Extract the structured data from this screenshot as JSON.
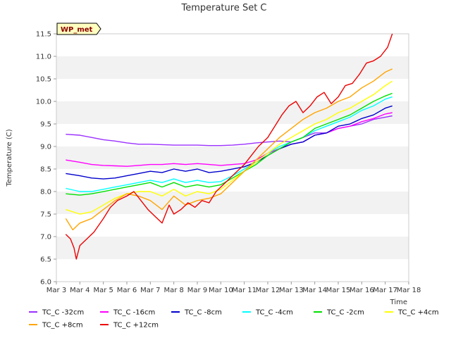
{
  "chart_data": {
    "type": "line",
    "title": "Temperature Set C",
    "xlabel": "Time",
    "ylabel": "Temperature (C)",
    "ylim": [
      6.0,
      11.5
    ],
    "xlim": [
      3,
      18
    ],
    "x_ticks": [
      {
        "value": 3,
        "label": "Mar 3"
      },
      {
        "value": 4,
        "label": "Mar 4"
      },
      {
        "value": 5,
        "label": "Mar 5"
      },
      {
        "value": 6,
        "label": "Mar 6"
      },
      {
        "value": 7,
        "label": "Mar 7"
      },
      {
        "value": 8,
        "label": "Mar 8"
      },
      {
        "value": 9,
        "label": "Mar 9"
      },
      {
        "value": 10,
        "label": "Mar 10"
      },
      {
        "value": 11,
        "label": "Mar 11"
      },
      {
        "value": 12,
        "label": "Mar 12"
      },
      {
        "value": 13,
        "label": "Mar 13"
      },
      {
        "value": 14,
        "label": "Mar 14"
      },
      {
        "value": 15,
        "label": "Mar 15"
      },
      {
        "value": 16,
        "label": "Mar 16"
      },
      {
        "value": 17,
        "label": "Mar 17"
      },
      {
        "value": 18,
        "label": "Mar 18"
      }
    ],
    "y_ticks": [
      "6.0",
      "6.5",
      "7.0",
      "7.5",
      "8.0",
      "8.5",
      "9.0",
      "9.5",
      "10.0",
      "10.5",
      "11.0",
      "11.5"
    ],
    "grid": "horizontal alternating bands",
    "legend_placement": "bottom",
    "annotation": "WP_met",
    "series": [
      {
        "name": "TC_C -32cm",
        "color": "#9b30ff",
        "x": [
          3.4,
          4,
          4.5,
          5,
          5.5,
          6,
          6.5,
          7,
          7.5,
          8,
          8.5,
          9,
          9.5,
          10,
          10.5,
          11,
          11.5,
          12,
          12.5,
          13,
          13.5,
          14,
          14.5,
          15,
          15.5,
          16,
          16.5,
          17,
          17.3
        ],
        "values": [
          9.27,
          9.25,
          9.2,
          9.15,
          9.12,
          9.08,
          9.05,
          9.05,
          9.04,
          9.03,
          9.03,
          9.03,
          9.02,
          9.02,
          9.03,
          9.05,
          9.08,
          9.1,
          9.12,
          9.1,
          9.2,
          9.3,
          9.3,
          9.4,
          9.45,
          9.5,
          9.6,
          9.65,
          9.68
        ]
      },
      {
        "name": "TC_C -16cm",
        "color": "#ff00ff",
        "x": [
          3.4,
          4,
          4.5,
          5,
          5.5,
          6,
          6.5,
          7,
          7.5,
          8,
          8.5,
          9,
          9.5,
          10,
          10.5,
          11,
          11.5,
          12,
          12.5,
          13,
          13.5,
          14,
          14.5,
          15,
          15.5,
          16,
          16.5,
          17,
          17.3
        ],
        "values": [
          8.7,
          8.65,
          8.6,
          8.58,
          8.57,
          8.56,
          8.58,
          8.6,
          8.6,
          8.62,
          8.6,
          8.62,
          8.6,
          8.58,
          8.6,
          8.62,
          8.7,
          8.85,
          8.95,
          9.05,
          9.1,
          9.25,
          9.3,
          9.4,
          9.45,
          9.55,
          9.62,
          9.72,
          9.75
        ]
      },
      {
        "name": "TC_C -8cm",
        "color": "#0000cd",
        "x": [
          3.4,
          4,
          4.5,
          5,
          5.5,
          6,
          6.5,
          7,
          7.5,
          8,
          8.5,
          9,
          9.5,
          10,
          10.5,
          11,
          11.5,
          12,
          12.5,
          13,
          13.5,
          14,
          14.5,
          15,
          15.5,
          16,
          16.5,
          17,
          17.3
        ],
        "values": [
          8.4,
          8.35,
          8.3,
          8.28,
          8.3,
          8.35,
          8.4,
          8.45,
          8.42,
          8.5,
          8.45,
          8.5,
          8.42,
          8.45,
          8.5,
          8.55,
          8.65,
          8.8,
          8.95,
          9.05,
          9.1,
          9.25,
          9.3,
          9.45,
          9.5,
          9.62,
          9.7,
          9.85,
          9.9
        ]
      },
      {
        "name": "TC_C -4cm",
        "color": "#00ffff",
        "x": [
          3.4,
          4,
          4.5,
          5,
          5.5,
          6,
          6.5,
          7,
          7.5,
          8,
          8.5,
          9,
          9.5,
          10,
          10.5,
          11,
          11.5,
          12,
          12.5,
          13,
          13.5,
          14,
          14.5,
          15,
          15.5,
          16,
          16.5,
          17,
          17.3
        ],
        "values": [
          8.07,
          8.0,
          8.0,
          8.05,
          8.1,
          8.15,
          8.2,
          8.25,
          8.2,
          8.28,
          8.2,
          8.25,
          8.2,
          8.22,
          8.35,
          8.5,
          8.65,
          8.85,
          9.0,
          9.1,
          9.2,
          9.35,
          9.45,
          9.55,
          9.65,
          9.8,
          9.9,
          10.05,
          10.1
        ]
      },
      {
        "name": "TC_C -2cm",
        "color": "#00e000",
        "x": [
          3.4,
          4,
          4.5,
          5,
          5.5,
          6,
          6.5,
          7,
          7.5,
          8,
          8.5,
          9,
          9.5,
          10,
          10.5,
          11,
          11.5,
          12,
          12.5,
          13,
          13.5,
          14,
          14.5,
          15,
          15.5,
          16,
          16.5,
          17,
          17.3
        ],
        "values": [
          7.95,
          7.92,
          7.95,
          8.0,
          8.05,
          8.1,
          8.15,
          8.2,
          8.1,
          8.2,
          8.1,
          8.15,
          8.1,
          8.15,
          8.3,
          8.45,
          8.6,
          8.8,
          8.95,
          9.1,
          9.2,
          9.4,
          9.5,
          9.6,
          9.7,
          9.85,
          10.0,
          10.12,
          10.18
        ]
      },
      {
        "name": "TC_C +4cm",
        "color": "#ffff00",
        "x": [
          3.4,
          4,
          4.5,
          5,
          5.5,
          6,
          6.5,
          7,
          7.5,
          8,
          8.5,
          9,
          9.5,
          10,
          10.5,
          11,
          11.5,
          12,
          12.5,
          13,
          13.5,
          14,
          14.5,
          15,
          15.5,
          16,
          16.5,
          17,
          17.3
        ],
        "values": [
          7.6,
          7.5,
          7.55,
          7.7,
          7.85,
          7.95,
          8.0,
          8.0,
          7.9,
          8.05,
          7.9,
          8.0,
          7.95,
          8.05,
          8.25,
          8.45,
          8.65,
          8.85,
          9.05,
          9.2,
          9.35,
          9.5,
          9.6,
          9.75,
          9.85,
          10.0,
          10.15,
          10.35,
          10.45
        ]
      },
      {
        "name": "TC_C +8cm",
        "color": "#ffa500",
        "x": [
          3.4,
          3.7,
          4,
          4.5,
          5,
          5.5,
          6,
          6.5,
          7,
          7.5,
          8,
          8.5,
          9,
          9.5,
          10,
          10.5,
          11,
          11.5,
          12,
          12.5,
          13,
          13.5,
          14,
          14.5,
          15,
          15.5,
          16,
          16.5,
          17,
          17.3
        ],
        "values": [
          7.4,
          7.15,
          7.3,
          7.4,
          7.6,
          7.8,
          7.95,
          7.9,
          7.8,
          7.6,
          7.9,
          7.7,
          7.8,
          7.85,
          7.95,
          8.2,
          8.45,
          8.7,
          8.95,
          9.2,
          9.4,
          9.6,
          9.75,
          9.85,
          10.0,
          10.1,
          10.3,
          10.45,
          10.65,
          10.72
        ]
      },
      {
        "name": "TC_C +12cm",
        "color": "#ee0000",
        "x": [
          3.4,
          3.6,
          3.75,
          3.85,
          4,
          4.3,
          4.6,
          5,
          5.3,
          5.6,
          6,
          6.3,
          6.6,
          6.9,
          7.2,
          7.5,
          7.8,
          8,
          8.3,
          8.6,
          8.9,
          9.2,
          9.5,
          9.8,
          10.2,
          10.6,
          11,
          11.3,
          11.6,
          12,
          12.3,
          12.6,
          12.9,
          13.2,
          13.5,
          13.8,
          14.1,
          14.4,
          14.7,
          15,
          15.3,
          15.6,
          15.9,
          16.2,
          16.5,
          16.8,
          17.1,
          17.3
        ],
        "values": [
          7.05,
          6.95,
          6.75,
          6.5,
          6.8,
          6.95,
          7.1,
          7.4,
          7.65,
          7.8,
          7.9,
          8.0,
          7.8,
          7.6,
          7.45,
          7.3,
          7.7,
          7.5,
          7.6,
          7.75,
          7.65,
          7.8,
          7.75,
          8.0,
          8.2,
          8.4,
          8.6,
          8.8,
          9.0,
          9.2,
          9.45,
          9.7,
          9.9,
          10.0,
          9.75,
          9.9,
          10.1,
          10.2,
          9.95,
          10.1,
          10.35,
          10.4,
          10.6,
          10.85,
          10.9,
          11.0,
          11.2,
          11.5
        ]
      }
    ]
  }
}
